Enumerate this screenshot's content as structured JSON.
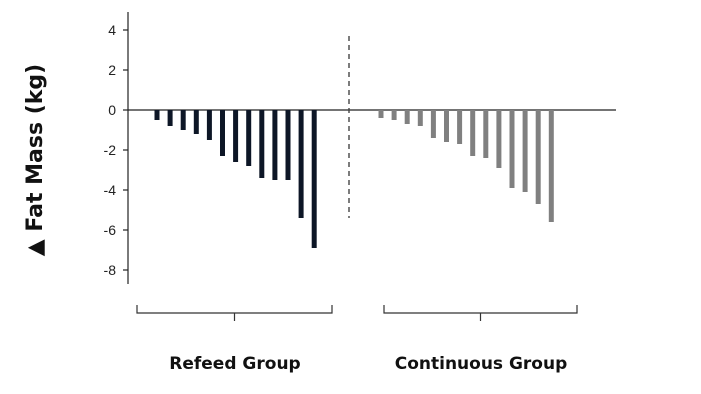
{
  "chart_data": {
    "type": "bar",
    "title": "",
    "xlabel": "",
    "ylabel": "▲ Fat Mass (kg)",
    "ylim": [
      -9,
      5
    ],
    "yticks": [
      4,
      2,
      0,
      -2,
      -4,
      -6,
      -8
    ],
    "grid": false,
    "groups": [
      {
        "label": "Refeed Group",
        "color": "#0d1626",
        "values": [
          -0.5,
          -0.8,
          -1.0,
          -1.2,
          -1.5,
          -2.3,
          -2.6,
          -2.8,
          -3.4,
          -3.5,
          -3.5,
          -5.4,
          -6.9
        ]
      },
      {
        "label": "Continuous Group",
        "color": "#808080",
        "values": [
          -0.4,
          -0.5,
          -0.7,
          -0.8,
          -1.4,
          -1.6,
          -1.7,
          -2.3,
          -2.4,
          -2.9,
          -3.9,
          -4.1,
          -4.7,
          -5.6
        ]
      }
    ]
  }
}
